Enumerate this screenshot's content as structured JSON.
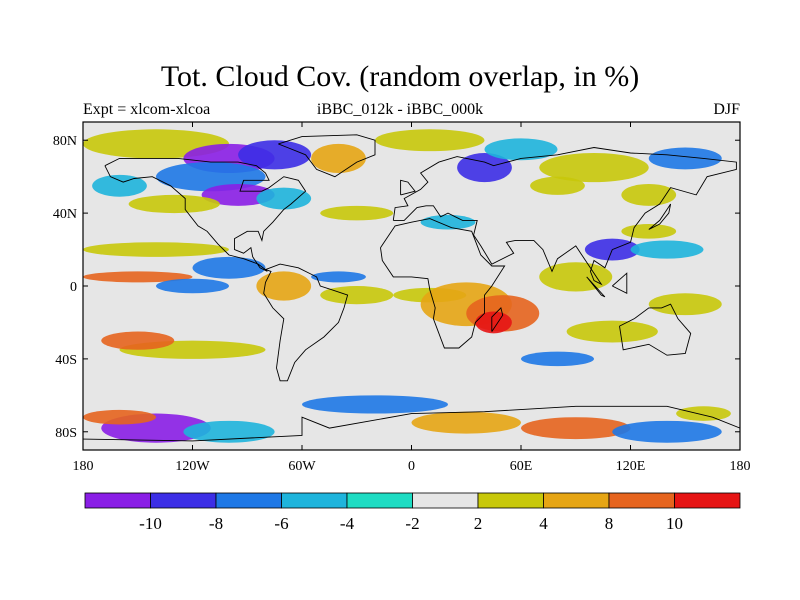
{
  "title": "Tot. Cloud Cov. (random overlap, in %)",
  "left_label": "Expt = xlcom-xlcoa",
  "center_label": "iBBC_012k - iBBC_000k",
  "right_label": "DJF",
  "map": {
    "projection": "cylindrical-equidistant",
    "lon_range": [
      -180,
      180
    ],
    "lat_range": [
      -90,
      90
    ],
    "background_color": "#e6e6e6",
    "coastline_color": "#000000",
    "x_ticks": [
      {
        "value": -180,
        "label": "180"
      },
      {
        "value": -120,
        "label": "120W"
      },
      {
        "value": -60,
        "label": "60W"
      },
      {
        "value": 0,
        "label": "0"
      },
      {
        "value": 60,
        "label": "60E"
      },
      {
        "value": 120,
        "label": "120E"
      },
      {
        "value": 180,
        "label": "180"
      }
    ],
    "y_ticks": [
      {
        "value": 80,
        "label": "80N"
      },
      {
        "value": 40,
        "label": "40N"
      },
      {
        "value": 0,
        "label": "0"
      },
      {
        "value": -40,
        "label": "40S"
      },
      {
        "value": -80,
        "label": "80S"
      }
    ]
  },
  "colorbar": {
    "colors": [
      "#8a1ee6",
      "#3c2ee6",
      "#1e78e6",
      "#1eb4dc",
      "#1edcc3",
      "#e6e6e6",
      "#c8c80a",
      "#e6a514",
      "#e6641e",
      "#e61414"
    ],
    "labels": [
      {
        "index": 1,
        "text": "-10"
      },
      {
        "index": 2,
        "text": "-8"
      },
      {
        "index": 3,
        "text": "-6"
      },
      {
        "index": 4,
        "text": "-4"
      },
      {
        "index": 5,
        "text": "-2"
      },
      {
        "index": 6,
        "text": "2"
      },
      {
        "index": 7,
        "text": "4"
      },
      {
        "index": 8,
        "text": "8"
      },
      {
        "index": 9,
        "text": "10"
      }
    ]
  },
  "anomalies": [
    {
      "lon": -140,
      "lat": 78,
      "rx": 40,
      "ry": 8,
      "c": 6
    },
    {
      "lon": -100,
      "lat": 70,
      "rx": 25,
      "ry": 8,
      "c": 0
    },
    {
      "lon": -75,
      "lat": 72,
      "rx": 20,
      "ry": 8,
      "c": 1
    },
    {
      "lon": -110,
      "lat": 60,
      "rx": 30,
      "ry": 8,
      "c": 2
    },
    {
      "lon": -95,
      "lat": 50,
      "rx": 20,
      "ry": 6,
      "c": 0
    },
    {
      "lon": -130,
      "lat": 45,
      "rx": 25,
      "ry": 5,
      "c": 6
    },
    {
      "lon": -70,
      "lat": 48,
      "rx": 15,
      "ry": 6,
      "c": 3
    },
    {
      "lon": -160,
      "lat": 55,
      "rx": 15,
      "ry": 6,
      "c": 3
    },
    {
      "lon": -40,
      "lat": 70,
      "rx": 15,
      "ry": 8,
      "c": 7
    },
    {
      "lon": 10,
      "lat": 80,
      "rx": 30,
      "ry": 6,
      "c": 6
    },
    {
      "lon": 40,
      "lat": 65,
      "rx": 15,
      "ry": 8,
      "c": 1
    },
    {
      "lon": 60,
      "lat": 75,
      "rx": 20,
      "ry": 6,
      "c": 3
    },
    {
      "lon": 100,
      "lat": 65,
      "rx": 30,
      "ry": 8,
      "c": 6
    },
    {
      "lon": 150,
      "lat": 70,
      "rx": 20,
      "ry": 6,
      "c": 2
    },
    {
      "lon": 130,
      "lat": 50,
      "rx": 15,
      "ry": 6,
      "c": 6
    },
    {
      "lon": -140,
      "lat": 20,
      "rx": 40,
      "ry": 4,
      "c": 6
    },
    {
      "lon": -150,
      "lat": 5,
      "rx": 30,
      "ry": 3,
      "c": 8
    },
    {
      "lon": -100,
      "lat": 10,
      "rx": 20,
      "ry": 6,
      "c": 2
    },
    {
      "lon": -120,
      "lat": 0,
      "rx": 20,
      "ry": 4,
      "c": 2
    },
    {
      "lon": -70,
      "lat": 0,
      "rx": 15,
      "ry": 8,
      "c": 7
    },
    {
      "lon": -40,
      "lat": 5,
      "rx": 15,
      "ry": 3,
      "c": 2
    },
    {
      "lon": -30,
      "lat": -5,
      "rx": 20,
      "ry": 5,
      "c": 6
    },
    {
      "lon": 10,
      "lat": -5,
      "rx": 20,
      "ry": 4,
      "c": 6
    },
    {
      "lon": 30,
      "lat": -10,
      "rx": 25,
      "ry": 12,
      "c": 7
    },
    {
      "lon": 50,
      "lat": -15,
      "rx": 20,
      "ry": 10,
      "c": 8
    },
    {
      "lon": 45,
      "lat": -20,
      "rx": 10,
      "ry": 6,
      "c": 9
    },
    {
      "lon": 90,
      "lat": 5,
      "rx": 20,
      "ry": 8,
      "c": 6
    },
    {
      "lon": 110,
      "lat": 20,
      "rx": 15,
      "ry": 6,
      "c": 1
    },
    {
      "lon": 140,
      "lat": 20,
      "rx": 20,
      "ry": 5,
      "c": 3
    },
    {
      "lon": 150,
      "lat": -10,
      "rx": 20,
      "ry": 6,
      "c": 6
    },
    {
      "lon": -120,
      "lat": -35,
      "rx": 40,
      "ry": 5,
      "c": 6
    },
    {
      "lon": -150,
      "lat": -30,
      "rx": 20,
      "ry": 5,
      "c": 8
    },
    {
      "lon": 110,
      "lat": -25,
      "rx": 25,
      "ry": 6,
      "c": 6
    },
    {
      "lon": 80,
      "lat": -40,
      "rx": 20,
      "ry": 4,
      "c": 2
    },
    {
      "lon": -20,
      "lat": -65,
      "rx": 40,
      "ry": 5,
      "c": 2
    },
    {
      "lon": -140,
      "lat": -78,
      "rx": 30,
      "ry": 8,
      "c": 0
    },
    {
      "lon": -100,
      "lat": -80,
      "rx": 25,
      "ry": 6,
      "c": 3
    },
    {
      "lon": -160,
      "lat": -72,
      "rx": 20,
      "ry": 4,
      "c": 8
    },
    {
      "lon": 30,
      "lat": -75,
      "rx": 30,
      "ry": 6,
      "c": 7
    },
    {
      "lon": 90,
      "lat": -78,
      "rx": 30,
      "ry": 6,
      "c": 8
    },
    {
      "lon": 140,
      "lat": -80,
      "rx": 30,
      "ry": 6,
      "c": 2
    },
    {
      "lon": 160,
      "lat": -70,
      "rx": 15,
      "ry": 4,
      "c": 6
    },
    {
      "lon": 130,
      "lat": 30,
      "rx": 15,
      "ry": 4,
      "c": 6
    },
    {
      "lon": -30,
      "lat": 40,
      "rx": 20,
      "ry": 4,
      "c": 6
    },
    {
      "lon": 20,
      "lat": 35,
      "rx": 15,
      "ry": 4,
      "c": 3
    },
    {
      "lon": 80,
      "lat": 55,
      "rx": 15,
      "ry": 5,
      "c": 6
    }
  ],
  "coastlines": [
    [
      [
        -168,
        66
      ],
      [
        -160,
        70
      ],
      [
        -140,
        70
      ],
      [
        -128,
        70
      ],
      [
        -110,
        68
      ],
      [
        -95,
        68
      ],
      [
        -85,
        66
      ],
      [
        -80,
        62
      ],
      [
        -78,
        58
      ],
      [
        -92,
        58
      ],
      [
        -94,
        52
      ],
      [
        -82,
        52
      ],
      [
        -78,
        54
      ],
      [
        -70,
        60
      ],
      [
        -62,
        58
      ],
      [
        -58,
        52
      ],
      [
        -66,
        45
      ],
      [
        -70,
        42
      ],
      [
        -76,
        35
      ],
      [
        -81,
        30
      ],
      [
        -82,
        25
      ],
      [
        -84,
        30
      ],
      [
        -90,
        30
      ],
      [
        -97,
        26
      ],
      [
        -97,
        20
      ],
      [
        -92,
        18
      ],
      [
        -88,
        21
      ],
      [
        -87,
        16
      ],
      [
        -83,
        10
      ],
      [
        -79,
        8
      ],
      [
        -80,
        9
      ],
      [
        -84,
        12
      ],
      [
        -92,
        15
      ],
      [
        -100,
        17
      ],
      [
        -106,
        23
      ],
      [
        -112,
        30
      ],
      [
        -117,
        33
      ],
      [
        -124,
        42
      ],
      [
        -124,
        48
      ],
      [
        -132,
        55
      ],
      [
        -142,
        60
      ],
      [
        -152,
        59
      ],
      [
        -158,
        57
      ],
      [
        -165,
        60
      ],
      [
        -168,
        66
      ]
    ],
    [
      [
        -80,
        9
      ],
      [
        -72,
        12
      ],
      [
        -62,
        10
      ],
      [
        -52,
        5
      ],
      [
        -50,
        0
      ],
      [
        -44,
        -2
      ],
      [
        -35,
        -5
      ],
      [
        -37,
        -12
      ],
      [
        -40,
        -20
      ],
      [
        -48,
        -28
      ],
      [
        -58,
        -35
      ],
      [
        -64,
        -42
      ],
      [
        -68,
        -52
      ],
      [
        -72,
        -52
      ],
      [
        -74,
        -45
      ],
      [
        -72,
        -30
      ],
      [
        -70,
        -18
      ],
      [
        -76,
        -12
      ],
      [
        -81,
        -4
      ],
      [
        -80,
        2
      ],
      [
        -77,
        8
      ],
      [
        -80,
        9
      ]
    ],
    [
      [
        -73,
        78
      ],
      [
        -60,
        82
      ],
      [
        -30,
        83
      ],
      [
        -20,
        80
      ],
      [
        -20,
        72
      ],
      [
        -30,
        68
      ],
      [
        -42,
        60
      ],
      [
        -52,
        64
      ],
      [
        -58,
        72
      ],
      [
        -68,
        76
      ],
      [
        -73,
        78
      ]
    ],
    [
      [
        -10,
        36
      ],
      [
        -9,
        43
      ],
      [
        -2,
        44
      ],
      [
        -4,
        48
      ],
      [
        5,
        53
      ],
      [
        9,
        57
      ],
      [
        5,
        62
      ],
      [
        15,
        68
      ],
      [
        25,
        71
      ],
      [
        40,
        68
      ],
      [
        45,
        66
      ],
      [
        60,
        70
      ],
      [
        80,
        72
      ],
      [
        100,
        76
      ],
      [
        120,
        73
      ],
      [
        140,
        72
      ],
      [
        160,
        70
      ],
      [
        178,
        68
      ],
      [
        178,
        64
      ],
      [
        162,
        60
      ],
      [
        156,
        50
      ],
      [
        142,
        54
      ],
      [
        136,
        45
      ],
      [
        128,
        40
      ],
      [
        122,
        32
      ],
      [
        120,
        24
      ],
      [
        110,
        20
      ],
      [
        106,
        10
      ],
      [
        100,
        14
      ],
      [
        98,
        8
      ],
      [
        100,
        3
      ],
      [
        104,
        1
      ],
      [
        94,
        16
      ],
      [
        90,
        22
      ],
      [
        80,
        15
      ],
      [
        77,
        8
      ],
      [
        72,
        20
      ],
      [
        67,
        25
      ],
      [
        57,
        25
      ],
      [
        52,
        24
      ],
      [
        56,
        18
      ],
      [
        44,
        12
      ],
      [
        38,
        22
      ],
      [
        34,
        28
      ],
      [
        36,
        36
      ],
      [
        28,
        36
      ],
      [
        24,
        38
      ],
      [
        20,
        40
      ],
      [
        16,
        38
      ],
      [
        12,
        44
      ],
      [
        8,
        44
      ],
      [
        3,
        43
      ],
      [
        -4,
        36
      ],
      [
        -10,
        36
      ]
    ],
    [
      [
        -17,
        21
      ],
      [
        -16,
        14
      ],
      [
        -10,
        5
      ],
      [
        0,
        5
      ],
      [
        9,
        4
      ],
      [
        10,
        -2
      ],
      [
        13,
        -12
      ],
      [
        12,
        -18
      ],
      [
        18,
        -34
      ],
      [
        26,
        -34
      ],
      [
        33,
        -28
      ],
      [
        35,
        -20
      ],
      [
        40,
        -15
      ],
      [
        40,
        -5
      ],
      [
        44,
        0
      ],
      [
        51,
        11
      ],
      [
        44,
        11
      ],
      [
        38,
        17
      ],
      [
        33,
        30
      ],
      [
        22,
        32
      ],
      [
        10,
        37
      ],
      [
        0,
        35
      ],
      [
        -9,
        33
      ],
      [
        -17,
        21
      ]
    ],
    [
      [
        114,
        -22
      ],
      [
        122,
        -18
      ],
      [
        130,
        -12
      ],
      [
        137,
        -12
      ],
      [
        142,
        -10
      ],
      [
        146,
        -18
      ],
      [
        153,
        -26
      ],
      [
        150,
        -37
      ],
      [
        140,
        -38
      ],
      [
        130,
        -32
      ],
      [
        116,
        -35
      ],
      [
        114,
        -22
      ]
    ],
    [
      [
        44,
        -25
      ],
      [
        50,
        -16
      ],
      [
        49,
        -12
      ],
      [
        44,
        -17
      ],
      [
        44,
        -25
      ]
    ],
    [
      [
        -6,
        50
      ],
      [
        2,
        52
      ],
      [
        -2,
        57
      ],
      [
        -6,
        58
      ],
      [
        -6,
        50
      ]
    ],
    [
      [
        -180,
        -84
      ],
      [
        -120,
        -85
      ],
      [
        -60,
        -82
      ],
      [
        -60,
        -72
      ],
      [
        -45,
        -78
      ],
      [
        0,
        -70
      ],
      [
        40,
        -69
      ],
      [
        90,
        -66
      ],
      [
        140,
        -66
      ],
      [
        165,
        -72
      ],
      [
        180,
        -78
      ]
    ],
    [
      [
        130,
        31
      ],
      [
        136,
        34
      ],
      [
        141,
        40
      ],
      [
        142,
        45
      ],
      [
        140,
        42
      ],
      [
        136,
        36
      ],
      [
        130,
        31
      ]
    ],
    [
      [
        96,
        5
      ],
      [
        106,
        -6
      ],
      [
        104,
        -5
      ],
      [
        96,
        5
      ]
    ],
    [
      [
        110,
        0
      ],
      [
        118,
        7
      ],
      [
        118,
        -4
      ],
      [
        110,
        0
      ]
    ]
  ]
}
